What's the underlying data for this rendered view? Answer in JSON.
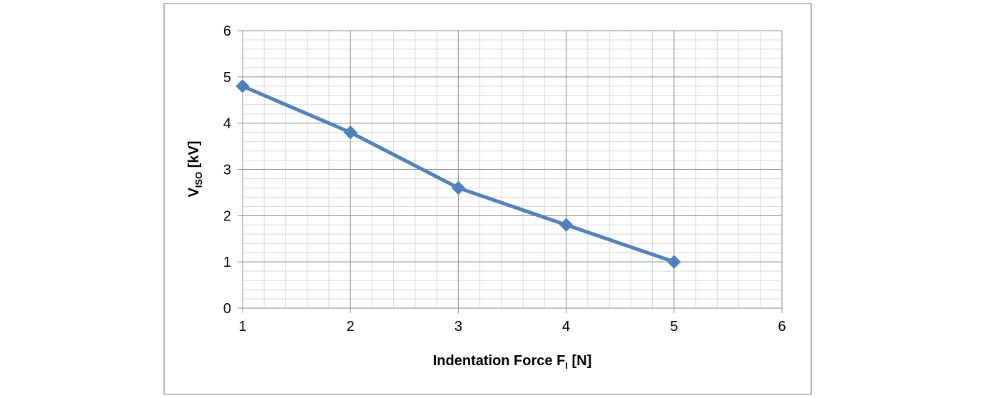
{
  "chart_data": {
    "type": "line",
    "title": "",
    "xlabel": "Indentation Force F",
    "xlabel_sub": "I",
    "xlabel_unit": " [N]",
    "ylabel": "V",
    "ylabel_sub": "ISO",
    "ylabel_unit": " [kV]",
    "xlim": [
      1,
      6
    ],
    "ylim": [
      0,
      6
    ],
    "x_ticks": [
      1,
      2,
      3,
      4,
      5,
      6
    ],
    "y_ticks": [
      0,
      1,
      2,
      3,
      4,
      5,
      6
    ],
    "x_minor_step": 0.2,
    "y_minor_step": 0.2,
    "grid": true,
    "legend": "none",
    "series": [
      {
        "x": [
          1,
          2,
          3,
          4,
          5
        ],
        "y": [
          4.8,
          3.8,
          2.6,
          1.8,
          1.0
        ],
        "color": "#4f81bd",
        "marker": "diamond"
      }
    ]
  }
}
